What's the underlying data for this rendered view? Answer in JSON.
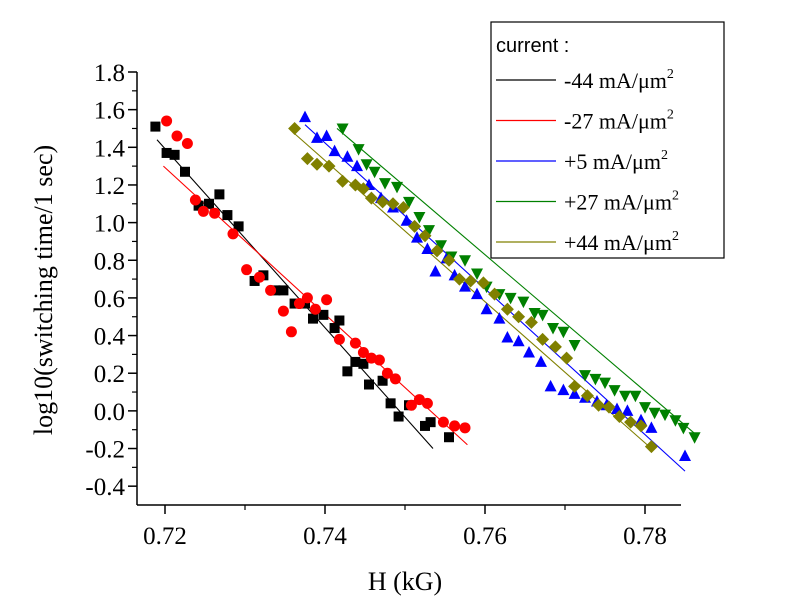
{
  "chart_data": {
    "type": "scatter",
    "xlabel": "H (kG)",
    "ylabel": "log10(switching time/1 sec)",
    "xlim": [
      0.7165,
      0.7845
    ],
    "ylim": [
      -0.5,
      1.8
    ],
    "xticks": [
      0.72,
      0.74,
      0.76,
      0.78
    ],
    "xtick_labels": [
      "0.72",
      "0.74",
      "0.76",
      "0.78"
    ],
    "yticks": [
      -0.4,
      -0.2,
      0.0,
      0.2,
      0.4,
      0.6,
      0.8,
      1.0,
      1.2,
      1.4,
      1.6,
      1.8
    ],
    "ytick_labels": [
      "-0.4",
      "-0.2",
      "0.0",
      "0.2",
      "0.4",
      "0.6",
      "0.8",
      "1.0",
      "1.2",
      "1.4",
      "1.6",
      "1.8"
    ],
    "grid": false,
    "legend": {
      "title": "current :",
      "placement": "top-right"
    },
    "series": [
      {
        "name": "-44 mA/μm",
        "sup": "2",
        "color": "#000000",
        "marker": "square",
        "fit": [
          [
            0.719,
            1.44
          ],
          [
            0.7535,
            -0.2
          ]
        ],
        "points": [
          [
            0.7188,
            1.51
          ],
          [
            0.7202,
            1.37
          ],
          [
            0.7212,
            1.36
          ],
          [
            0.7225,
            1.27
          ],
          [
            0.7242,
            1.09
          ],
          [
            0.7255,
            1.1
          ],
          [
            0.7268,
            1.15
          ],
          [
            0.7278,
            1.04
          ],
          [
            0.7292,
            0.98
          ],
          [
            0.7312,
            0.69
          ],
          [
            0.7323,
            0.72
          ],
          [
            0.7338,
            0.64
          ],
          [
            0.7348,
            0.64
          ],
          [
            0.7362,
            0.57
          ],
          [
            0.7375,
            0.57
          ],
          [
            0.7385,
            0.49
          ],
          [
            0.7398,
            0.51
          ],
          [
            0.7412,
            0.44
          ],
          [
            0.7418,
            0.48
          ],
          [
            0.7428,
            0.21
          ],
          [
            0.7438,
            0.26
          ],
          [
            0.7448,
            0.25
          ],
          [
            0.7455,
            0.14
          ],
          [
            0.7472,
            0.16
          ],
          [
            0.7482,
            0.04
          ],
          [
            0.7492,
            -0.03
          ],
          [
            0.7505,
            0.03
          ],
          [
            0.7525,
            -0.08
          ],
          [
            0.7532,
            -0.06
          ],
          [
            0.7555,
            -0.14
          ]
        ]
      },
      {
        "name": "-27 mA/μm",
        "sup": "2",
        "color": "#ff0000",
        "marker": "circle",
        "fit": [
          [
            0.7198,
            1.3
          ],
          [
            0.7578,
            -0.18
          ]
        ],
        "points": [
          [
            0.7202,
            1.54
          ],
          [
            0.7215,
            1.46
          ],
          [
            0.7228,
            1.42
          ],
          [
            0.7238,
            1.12
          ],
          [
            0.7248,
            1.06
          ],
          [
            0.7262,
            1.05
          ],
          [
            0.7285,
            0.94
          ],
          [
            0.7302,
            0.75
          ],
          [
            0.7318,
            0.71
          ],
          [
            0.7332,
            0.64
          ],
          [
            0.7348,
            0.53
          ],
          [
            0.7358,
            0.42
          ],
          [
            0.7368,
            0.57
          ],
          [
            0.7378,
            0.6
          ],
          [
            0.7388,
            0.54
          ],
          [
            0.7402,
            0.59
          ],
          [
            0.7418,
            0.38
          ],
          [
            0.7438,
            0.36
          ],
          [
            0.7448,
            0.31
          ],
          [
            0.7458,
            0.28
          ],
          [
            0.7468,
            0.27
          ],
          [
            0.7478,
            0.2
          ],
          [
            0.7488,
            0.17
          ],
          [
            0.7508,
            0.03
          ],
          [
            0.7518,
            0.06
          ],
          [
            0.7528,
            0.04
          ],
          [
            0.7548,
            -0.06
          ],
          [
            0.7562,
            -0.08
          ],
          [
            0.7575,
            -0.09
          ]
        ]
      },
      {
        "name": "+5  mA/μm",
        "sup": "2",
        "color": "#0000ff",
        "marker": "triangle-up",
        "fit": [
          [
            0.7375,
            1.52
          ],
          [
            0.785,
            -0.32
          ]
        ],
        "points": [
          [
            0.7375,
            1.56
          ],
          [
            0.739,
            1.45
          ],
          [
            0.7402,
            1.46
          ],
          [
            0.7412,
            1.38
          ],
          [
            0.7428,
            1.35
          ],
          [
            0.744,
            1.3
          ],
          [
            0.7455,
            1.2
          ],
          [
            0.747,
            1.13
          ],
          [
            0.7485,
            1.08
          ],
          [
            0.7502,
            1.01
          ],
          [
            0.7515,
            0.92
          ],
          [
            0.7528,
            0.86
          ],
          [
            0.7538,
            0.74
          ],
          [
            0.7552,
            0.81
          ],
          [
            0.7562,
            0.72
          ],
          [
            0.7575,
            0.66
          ],
          [
            0.759,
            0.62
          ],
          [
            0.7602,
            0.54
          ],
          [
            0.7618,
            0.49
          ],
          [
            0.7628,
            0.39
          ],
          [
            0.7642,
            0.37
          ],
          [
            0.7655,
            0.31
          ],
          [
            0.767,
            0.26
          ],
          [
            0.7682,
            0.13
          ],
          [
            0.7698,
            0.11
          ],
          [
            0.7712,
            0.09
          ],
          [
            0.7725,
            0.07
          ],
          [
            0.774,
            0.05
          ],
          [
            0.7752,
            0.03
          ],
          [
            0.7765,
            0.01
          ],
          [
            0.7778,
            0.0
          ],
          [
            0.7795,
            -0.05
          ],
          [
            0.7808,
            -0.09
          ],
          [
            0.785,
            -0.24
          ]
        ]
      },
      {
        "name": "+27  mA/μm",
        "sup": "2",
        "color": "#008000",
        "marker": "triangle-down",
        "fit": [
          [
            0.7415,
            1.5
          ],
          [
            0.7862,
            -0.12
          ]
        ],
        "points": [
          [
            0.7422,
            1.5
          ],
          [
            0.7442,
            1.39
          ],
          [
            0.7452,
            1.31
          ],
          [
            0.7462,
            1.27
          ],
          [
            0.7475,
            1.21
          ],
          [
            0.749,
            1.19
          ],
          [
            0.7505,
            1.11
          ],
          [
            0.7518,
            1.03
          ],
          [
            0.753,
            0.96
          ],
          [
            0.7545,
            0.88
          ],
          [
            0.7558,
            0.82
          ],
          [
            0.7575,
            0.8
          ],
          [
            0.759,
            0.73
          ],
          [
            0.7602,
            0.66
          ],
          [
            0.7618,
            0.62
          ],
          [
            0.7632,
            0.6
          ],
          [
            0.7648,
            0.58
          ],
          [
            0.7662,
            0.52
          ],
          [
            0.7672,
            0.51
          ],
          [
            0.7685,
            0.44
          ],
          [
            0.7698,
            0.42
          ],
          [
            0.7712,
            0.35
          ],
          [
            0.7725,
            0.19
          ],
          [
            0.7738,
            0.17
          ],
          [
            0.775,
            0.15
          ],
          [
            0.7762,
            0.11
          ],
          [
            0.7775,
            0.08
          ],
          [
            0.7788,
            0.08
          ],
          [
            0.78,
            0.02
          ],
          [
            0.7812,
            -0.01
          ],
          [
            0.7825,
            -0.02
          ],
          [
            0.7838,
            -0.05
          ],
          [
            0.7848,
            -0.09
          ],
          [
            0.7862,
            -0.14
          ]
        ]
      },
      {
        "name": "+44 mA/μm",
        "sup": "2",
        "color": "#808000",
        "marker": "diamond",
        "fit": [
          [
            0.736,
            1.48
          ],
          [
            0.7808,
            -0.2
          ]
        ],
        "points": [
          [
            0.7362,
            1.5
          ],
          [
            0.7378,
            1.34
          ],
          [
            0.739,
            1.31
          ],
          [
            0.7405,
            1.3
          ],
          [
            0.7422,
            1.22
          ],
          [
            0.7438,
            1.2
          ],
          [
            0.7448,
            1.18
          ],
          [
            0.7458,
            1.13
          ],
          [
            0.7472,
            1.11
          ],
          [
            0.7485,
            1.1
          ],
          [
            0.7498,
            1.08
          ],
          [
            0.7512,
            0.98
          ],
          [
            0.7525,
            0.93
          ],
          [
            0.754,
            0.85
          ],
          [
            0.7555,
            0.8
          ],
          [
            0.7568,
            0.7
          ],
          [
            0.7582,
            0.69
          ],
          [
            0.7598,
            0.68
          ],
          [
            0.7612,
            0.62
          ],
          [
            0.7628,
            0.54
          ],
          [
            0.7642,
            0.5
          ],
          [
            0.7658,
            0.47
          ],
          [
            0.7672,
            0.38
          ],
          [
            0.7688,
            0.34
          ],
          [
            0.7702,
            0.28
          ],
          [
            0.7712,
            0.13
          ],
          [
            0.7728,
            0.08
          ],
          [
            0.7742,
            0.03
          ],
          [
            0.7755,
            0.02
          ],
          [
            0.7768,
            -0.03
          ],
          [
            0.7782,
            -0.06
          ],
          [
            0.7795,
            -0.08
          ],
          [
            0.7808,
            -0.19
          ]
        ]
      }
    ]
  }
}
